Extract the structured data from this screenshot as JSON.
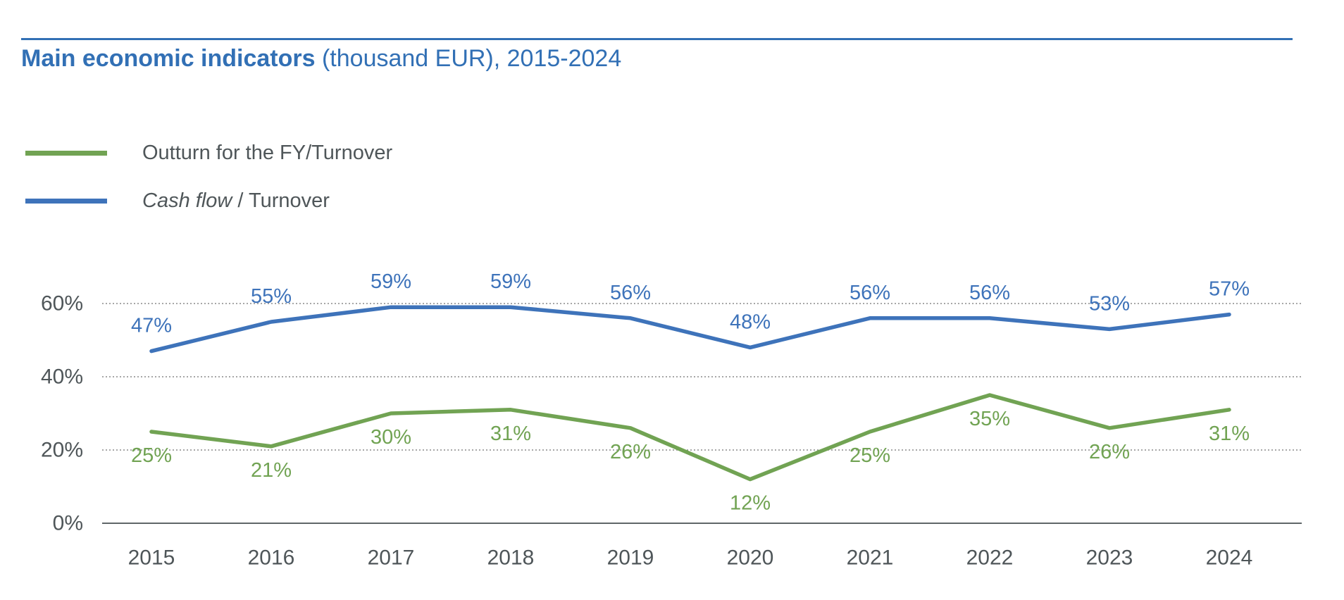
{
  "figure": {
    "title_bold": "Main economic indicators",
    "title_rest": " (thousand EUR), 2015-2024"
  },
  "legend": {
    "items": [
      {
        "swatch_color": "#71A353",
        "parts": [
          {
            "text": "Outturn for the FY/Turnover",
            "italic": false
          }
        ]
      },
      {
        "swatch_color": "#3E73BA",
        "parts": [
          {
            "text": "Cash flow",
            "italic": true
          },
          {
            "text": " / Turnover",
            "italic": false
          }
        ]
      }
    ]
  },
  "chart_data": {
    "type": "line",
    "title": "Main economic indicators (thousand EUR), 2015-2024",
    "categories": [
      "2015",
      "2016",
      "2017",
      "2018",
      "2019",
      "2020",
      "2021",
      "2022",
      "2023",
      "2024"
    ],
    "series": [
      {
        "name": "Outturn for the FY/Turnover",
        "color": "#71A353",
        "values": [
          25,
          21,
          30,
          31,
          26,
          12,
          25,
          35,
          26,
          31
        ],
        "data_labels": [
          "25%",
          "21%",
          "30%",
          "31%",
          "26%",
          "12%",
          "25%",
          "35%",
          "26%",
          "31%"
        ],
        "label_position": "below"
      },
      {
        "name": "Cash flow / Turnover",
        "color": "#3E73BA",
        "values": [
          47,
          55,
          59,
          59,
          56,
          48,
          56,
          56,
          53,
          57
        ],
        "data_labels": [
          "47%",
          "55%",
          "59%",
          "59%",
          "56%",
          "48%",
          "56%",
          "56%",
          "53%",
          "57%"
        ],
        "label_position": "above"
      }
    ],
    "xlabel": "",
    "ylabel": "",
    "ylim": [
      0,
      70
    ],
    "yticks": [
      0,
      20,
      40,
      60
    ],
    "ytick_labels": [
      "0%",
      "20%",
      "40%",
      "60%"
    ],
    "grid": "horizontal-dotted",
    "legend_position": "top-left"
  },
  "colors": {
    "title": "#3270B5",
    "title_rule": "#3270B5",
    "green_series": "#71A353",
    "blue_series": "#3E73BA",
    "axis_text": "#4F5659",
    "gridline": "#8A8A8A",
    "axis_line": "#5F6668"
  }
}
